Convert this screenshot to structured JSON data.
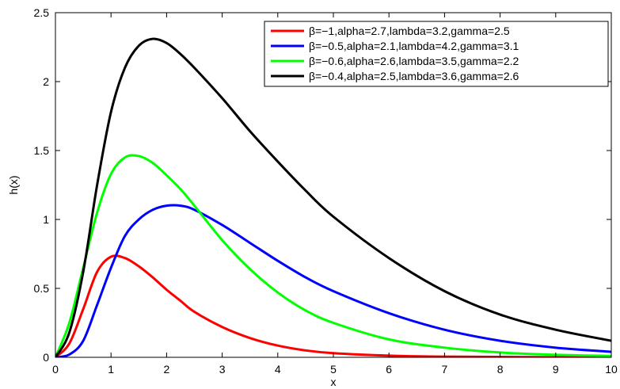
{
  "chart_data": {
    "type": "line",
    "title": "",
    "xlabel": "x",
    "ylabel": "h(x)",
    "xlim": [
      0,
      10
    ],
    "ylim": [
      0,
      2.5
    ],
    "xticks": [
      0,
      1,
      2,
      3,
      4,
      5,
      6,
      7,
      8,
      9,
      10
    ],
    "yticks": [
      0,
      0.5,
      1,
      1.5,
      2,
      2.5
    ],
    "xtick_labels": [
      "0",
      "1",
      "2",
      "3",
      "4",
      "5",
      "6",
      "7",
      "8",
      "9",
      "10"
    ],
    "ytick_labels": [
      "0",
      "0.5",
      "1",
      "1.5",
      "2",
      "2.5"
    ],
    "grid": false,
    "legend_position": "top-right",
    "x": [
      0,
      0.25,
      0.5,
      0.75,
      1,
      1.25,
      1.5,
      1.75,
      2,
      2.25,
      2.5,
      3,
      3.5,
      4,
      4.5,
      5,
      6,
      7,
      8,
      9,
      10
    ],
    "series": [
      {
        "name": "β=−1,alpha=2.7,lambda=3.2,gamma=2.5",
        "color": "#ff0000",
        "values": [
          0,
          0.1,
          0.35,
          0.62,
          0.73,
          0.72,
          0.66,
          0.58,
          0.49,
          0.41,
          0.33,
          0.22,
          0.14,
          0.085,
          0.05,
          0.03,
          0.012,
          0.005,
          0.003,
          0.001,
          0
        ]
      },
      {
        "name": "β=−0.5,alpha=2.1,lambda=4.2,gamma=3.1",
        "color": "#0000ff",
        "values": [
          0,
          0.02,
          0.12,
          0.38,
          0.65,
          0.88,
          1.0,
          1.07,
          1.1,
          1.1,
          1.07,
          0.96,
          0.83,
          0.7,
          0.58,
          0.48,
          0.32,
          0.2,
          0.12,
          0.07,
          0.04
        ]
      },
      {
        "name": "β=−0.6,alpha=2.6,lambda=3.5,gamma=2.2",
        "color": "#00ff00",
        "values": [
          0,
          0.25,
          0.65,
          1.05,
          1.33,
          1.45,
          1.46,
          1.41,
          1.32,
          1.22,
          1.1,
          0.85,
          0.64,
          0.47,
          0.34,
          0.25,
          0.13,
          0.07,
          0.035,
          0.018,
          0.01
        ]
      },
      {
        "name": "β=−0.4,alpha=2.5,lambda=3.6,gamma=2.6",
        "color": "#000000",
        "values": [
          0,
          0.18,
          0.62,
          1.25,
          1.78,
          2.1,
          2.26,
          2.31,
          2.28,
          2.2,
          2.1,
          1.88,
          1.64,
          1.42,
          1.21,
          1.02,
          0.72,
          0.48,
          0.31,
          0.2,
          0.12
        ]
      }
    ]
  }
}
